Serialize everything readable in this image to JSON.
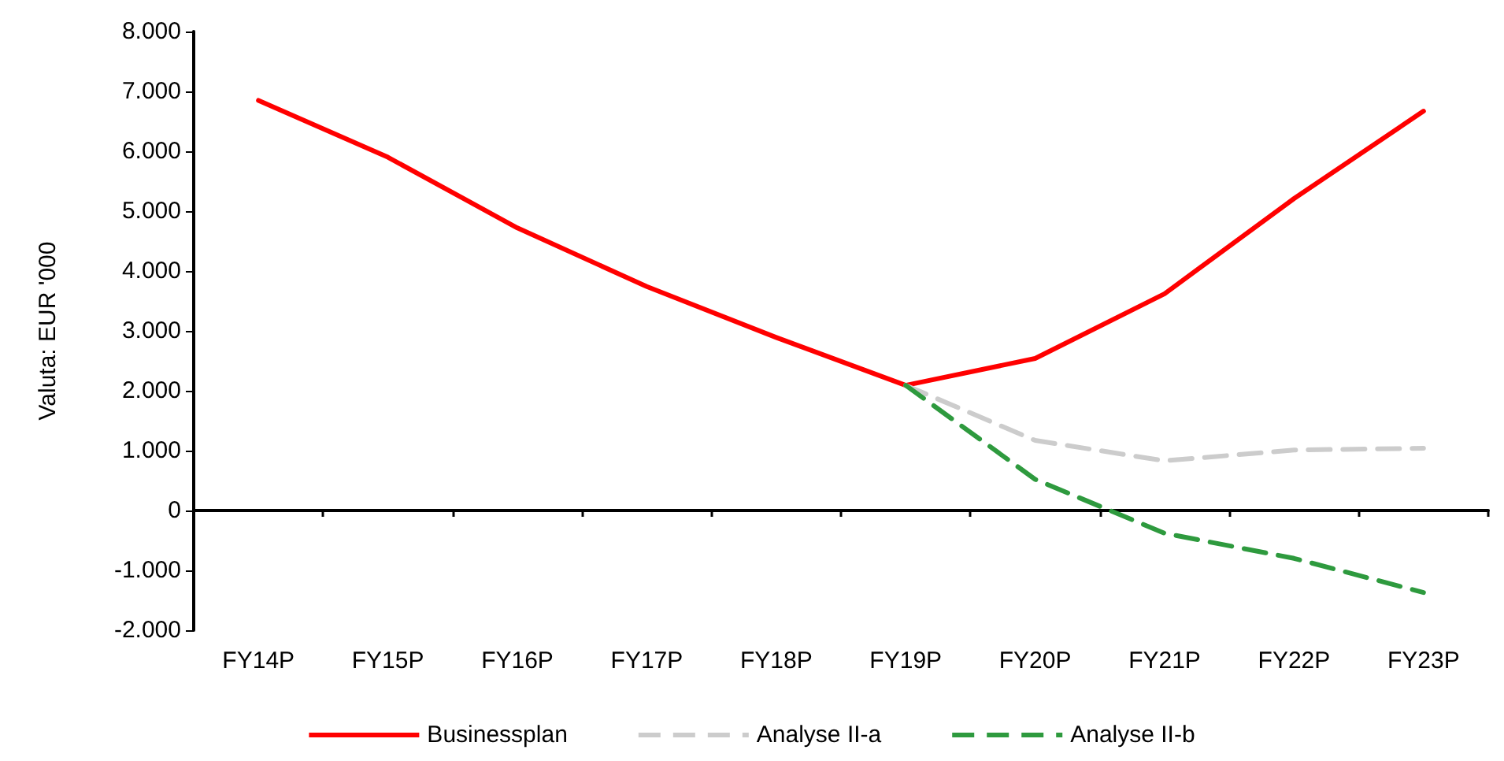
{
  "chart_data": {
    "type": "line",
    "ylabel": "Valuta: EUR '000",
    "categories": [
      "FY14P",
      "FY15P",
      "FY16P",
      "FY17P",
      "FY18P",
      "FY19P",
      "FY20P",
      "FY21P",
      "FY22P",
      "FY23P"
    ],
    "series": [
      {
        "name": "Businessplan",
        "color": "#ff0000",
        "line_style": "solid",
        "values": [
          6850,
          5900,
          4720,
          3740,
          2890,
          2090,
          2540,
          3620,
          5210,
          6670
        ]
      },
      {
        "name": "Analyse II-a",
        "color": "#cccccc",
        "line_style": "dashed",
        "values": [
          null,
          null,
          null,
          null,
          null,
          2090,
          1170,
          830,
          1010,
          1040
        ]
      },
      {
        "name": "Analyse II-b",
        "color": "#2e9a3e",
        "line_style": "dashed",
        "values": [
          null,
          null,
          null,
          null,
          null,
          2090,
          520,
          -380,
          -800,
          -1370
        ]
      }
    ],
    "ylim": [
      -2000,
      8000
    ],
    "yticks": [
      {
        "value": -2000,
        "label": "-2.000"
      },
      {
        "value": -1000,
        "label": "-1.000"
      },
      {
        "value": 0,
        "label": "0"
      },
      {
        "value": 1000,
        "label": "1.000"
      },
      {
        "value": 2000,
        "label": "2.000"
      },
      {
        "value": 3000,
        "label": "3.000"
      },
      {
        "value": 4000,
        "label": "4.000"
      },
      {
        "value": 5000,
        "label": "5.000"
      },
      {
        "value": 6000,
        "label": "6.000"
      },
      {
        "value": 7000,
        "label": "7.000"
      },
      {
        "value": 8000,
        "label": "8.000"
      }
    ],
    "legend": "bottom",
    "marker": "none"
  }
}
